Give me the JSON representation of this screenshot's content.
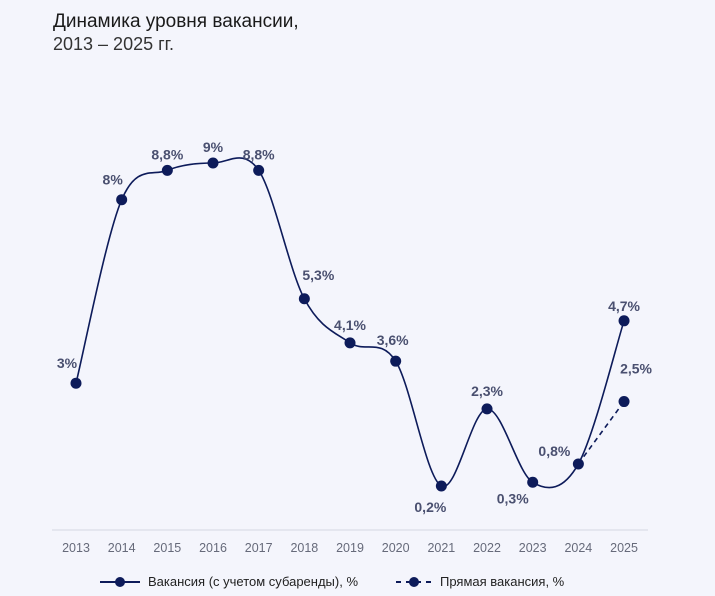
{
  "chart_data": {
    "type": "line",
    "title": "Динамика уровня вакансии",
    "subtitle": "2013 – 2025 гг.",
    "xlabel": "",
    "ylabel": "",
    "categories": [
      "2013",
      "2014",
      "2015",
      "2016",
      "2017",
      "2018",
      "2019",
      "2020",
      "2021",
      "2022",
      "2023",
      "2024",
      "2025"
    ],
    "series": [
      {
        "name": "Вакансия (с учетом субаренды), %",
        "style": "solid",
        "values": [
          3,
          8,
          8.8,
          9,
          8.8,
          5.3,
          4.1,
          3.6,
          0.2,
          2.3,
          0.3,
          0.8,
          4.7
        ],
        "labels": [
          "3%",
          "8%",
          "8,8%",
          "9%",
          "8,8%",
          "5,3%",
          "4,1%",
          "3,6%",
          "0,2%",
          "2,3%",
          "0,3%",
          "0,8%",
          "4,7%"
        ]
      },
      {
        "name": "Прямая вакансия, %",
        "style": "dashed",
        "x": [
          "2024",
          "2025"
        ],
        "values": [
          0.8,
          2.5
        ],
        "labels": [
          "",
          "2,5%"
        ]
      }
    ],
    "ylim": [
      0,
      10
    ],
    "grid": false,
    "legend": "bottom",
    "colors": {
      "line": "#0d1b5a",
      "label": "#4a5070",
      "axis": "#d4d6e2",
      "tick": "#666a7a"
    }
  }
}
